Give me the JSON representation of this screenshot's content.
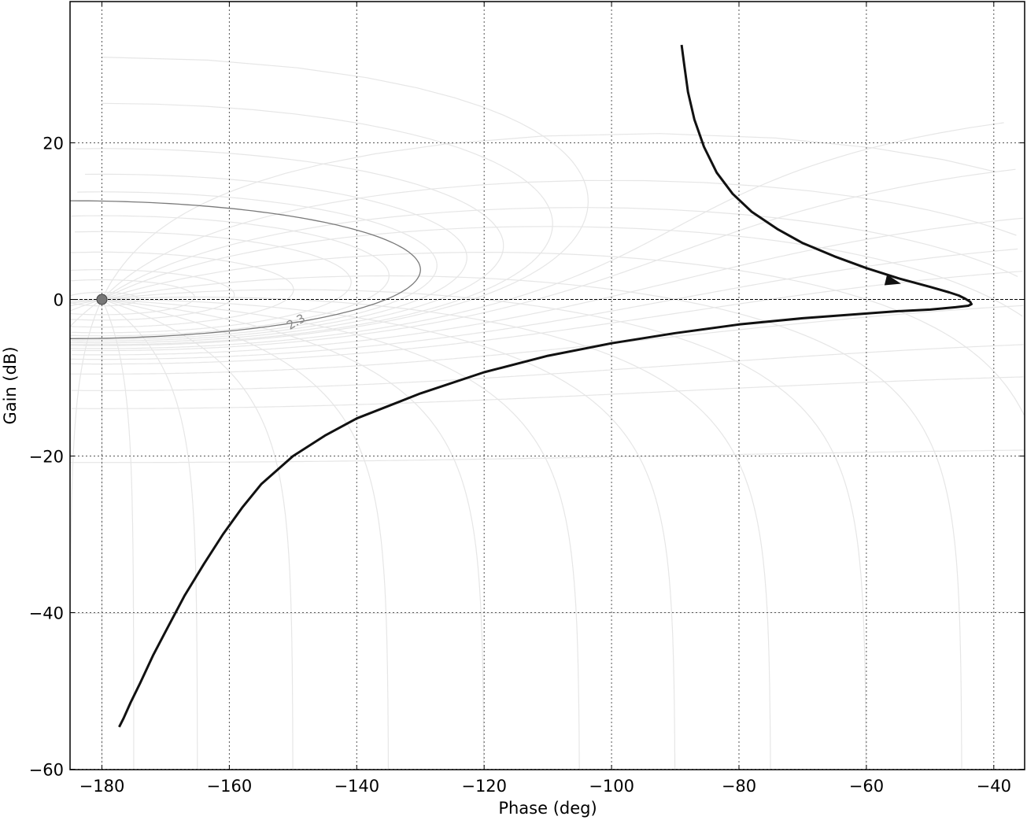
{
  "chart_data": {
    "type": "line",
    "title": "",
    "xlabel": "Phase (deg)",
    "ylabel": "Gain (dB)",
    "xlim": [
      -185,
      -35
    ],
    "ylim": [
      -60,
      38
    ],
    "x_ticks": [
      -180,
      -160,
      -140,
      -120,
      -100,
      -80,
      -60,
      -40
    ],
    "x_tick_labels": [
      "−180",
      "−160",
      "−140",
      "−120",
      "−100",
      "−80",
      "−60",
      "−40"
    ],
    "y_ticks": [
      -60,
      -40,
      -20,
      0,
      20
    ],
    "y_tick_labels": [
      "−60",
      "−40",
      "−20",
      "0",
      "20"
    ],
    "grid": true,
    "background_grid": "Nichols chart M/N contour grid (light grey)",
    "critical_point": {
      "x": -180,
      "y": 0
    },
    "highlighted_contour": {
      "label": "2.3",
      "x_right": -130,
      "y_top": 12.6,
      "y_bottom": -5.0
    },
    "series": [
      {
        "x": [
          -89.0,
          -88.6,
          -88.0,
          -87.0,
          -85.5,
          -83.5,
          -81.0,
          -78.0,
          -74.0,
          -70.0,
          -65.0,
          -60.0,
          -55.0,
          -50.0,
          -47.0,
          -45.5,
          -44.5,
          -43.7,
          -43.5,
          -44.0,
          -46.0,
          -50.0,
          -55.0,
          -60.0,
          -70.0,
          -80.0,
          -90.0,
          -100.0,
          -110.0,
          -120.0,
          -130.0,
          -140.0,
          -145.0,
          -150.0,
          -155.0,
          -158.0,
          -161.0,
          -164.0,
          -167.0,
          -170.0,
          -172.0,
          -174.0,
          -175.5,
          -176.6,
          -177.3
        ],
        "y": [
          32.5,
          30.0,
          26.5,
          23.0,
          19.5,
          16.2,
          13.5,
          11.2,
          9.0,
          7.2,
          5.5,
          4.0,
          2.7,
          1.6,
          0.9,
          0.5,
          0.1,
          -0.3,
          -0.6,
          -0.8,
          -1.0,
          -1.3,
          -1.5,
          -1.8,
          -2.4,
          -3.2,
          -4.3,
          -5.6,
          -7.2,
          -9.3,
          -12.0,
          -15.2,
          -17.4,
          -20.0,
          -23.6,
          -26.6,
          -30.0,
          -33.8,
          -37.8,
          -42.4,
          -45.5,
          -49.0,
          -51.5,
          -53.5,
          -54.6
        ]
      }
    ],
    "arrow_at": {
      "x": -56.0,
      "y": 2.3
    }
  }
}
